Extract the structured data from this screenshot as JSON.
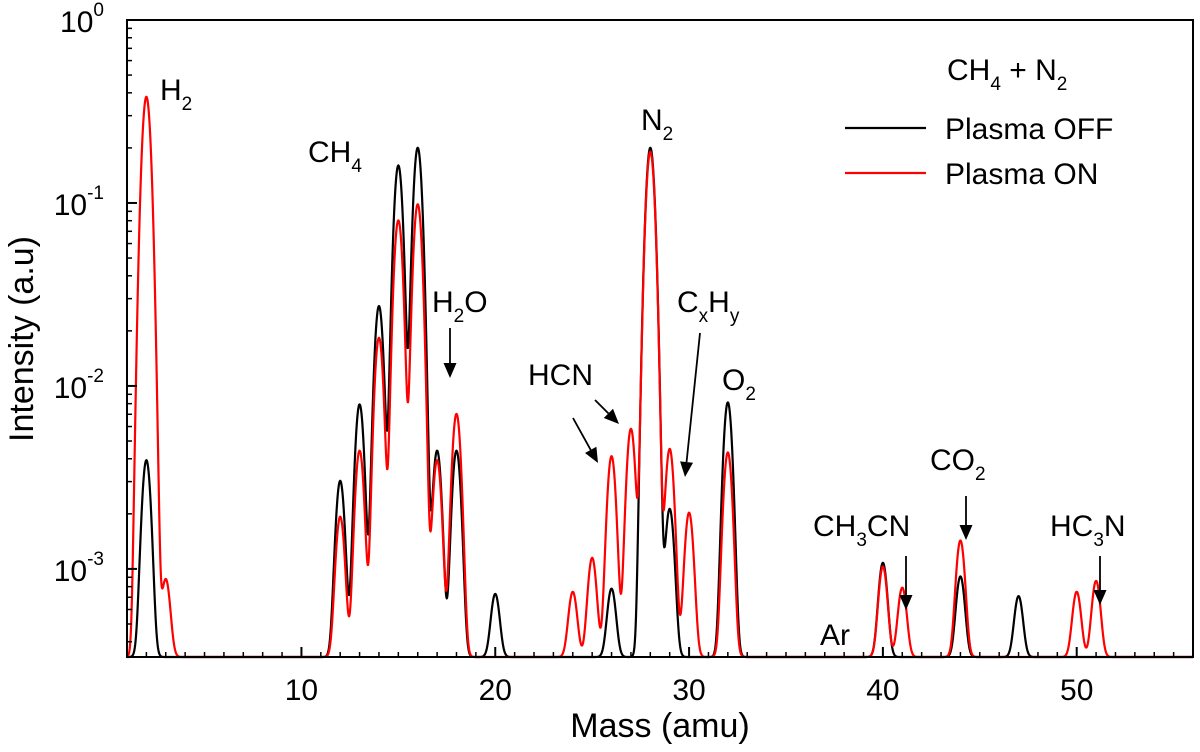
{
  "chart_data": {
    "type": "line",
    "xlabel": "Mass (amu)",
    "ylabel": "Intensity (a.u)",
    "xlim": [
      1,
      56
    ],
    "ylim": [
      0.00033,
      1
    ],
    "y_scale": "log",
    "grid": false,
    "x_ticks": [
      {
        "value": 10,
        "label": "10"
      },
      {
        "value": 20,
        "label": "20"
      },
      {
        "value": 30,
        "label": "30"
      },
      {
        "value": 40,
        "label": "40"
      },
      {
        "value": 50,
        "label": "50"
      }
    ],
    "y_ticks": [
      {
        "value": 1,
        "base": "10",
        "exp": "0"
      },
      {
        "value": 0.1,
        "base": "10",
        "exp": "-1"
      },
      {
        "value": 0.01,
        "base": "10",
        "exp": "-2"
      },
      {
        "value": 0.001,
        "base": "10",
        "exp": "-3"
      }
    ],
    "legend": {
      "title_parts": [
        "CH",
        "4",
        " + N",
        "2"
      ],
      "placement": "top-right"
    },
    "series": [
      {
        "name": "Plasma OFF",
        "color": "#000000",
        "peaks": [
          {
            "x": 2,
            "y": 0.0036
          },
          {
            "x": 12,
            "y": 0.0027
          },
          {
            "x": 13,
            "y": 0.0076
          },
          {
            "x": 14,
            "y": 0.027
          },
          {
            "x": 15,
            "y": 0.16
          },
          {
            "x": 16,
            "y": 0.2
          },
          {
            "x": 17,
            "y": 0.0041
          },
          {
            "x": 18,
            "y": 0.0041
          },
          {
            "x": 20,
            "y": 0.0004
          },
          {
            "x": 26,
            "y": 0.00045
          },
          {
            "x": 28,
            "y": 0.2
          },
          {
            "x": 29,
            "y": 0.0018
          },
          {
            "x": 32,
            "y": 0.0078
          },
          {
            "x": 40,
            "y": 0.00075
          },
          {
            "x": 44,
            "y": 0.00058
          },
          {
            "x": 47,
            "y": 0.00038
          }
        ]
      },
      {
        "name": "Plasma ON",
        "color": "#ff0000",
        "peaks": [
          {
            "x": 2,
            "y": 0.38
          },
          {
            "x": 3,
            "y": 0.00055
          },
          {
            "x": 12,
            "y": 0.0016
          },
          {
            "x": 13,
            "y": 0.0041
          },
          {
            "x": 14,
            "y": 0.018
          },
          {
            "x": 15,
            "y": 0.08
          },
          {
            "x": 16,
            "y": 0.098
          },
          {
            "x": 17,
            "y": 0.0036
          },
          {
            "x": 18,
            "y": 0.0067
          },
          {
            "x": 24,
            "y": 0.00042
          },
          {
            "x": 25,
            "y": 0.00082
          },
          {
            "x": 26,
            "y": 0.0038
          },
          {
            "x": 27,
            "y": 0.0055
          },
          {
            "x": 28,
            "y": 0.19
          },
          {
            "x": 29,
            "y": 0.0042
          },
          {
            "x": 30,
            "y": 0.0017
          },
          {
            "x": 32,
            "y": 0.004
          },
          {
            "x": 40,
            "y": 0.0007
          },
          {
            "x": 41,
            "y": 0.00046
          },
          {
            "x": 44,
            "y": 0.0011
          },
          {
            "x": 50,
            "y": 0.00042
          },
          {
            "x": 51,
            "y": 0.00053
          }
        ]
      }
    ],
    "annotations": [
      {
        "id": "h2",
        "parts": [
          "H",
          "2"
        ]
      },
      {
        "id": "ch4",
        "parts": [
          "CH",
          "4"
        ]
      },
      {
        "id": "h2o",
        "parts": [
          "H",
          "2",
          "O"
        ]
      },
      {
        "id": "hcn",
        "parts": [
          "HCN"
        ]
      },
      {
        "id": "n2",
        "parts": [
          "N",
          "2"
        ]
      },
      {
        "id": "cxhy",
        "parts": [
          "C",
          "x",
          "H",
          "y"
        ]
      },
      {
        "id": "o2",
        "parts": [
          "O",
          "2"
        ]
      },
      {
        "id": "ch3cn",
        "parts": [
          "CH",
          "3",
          "CN"
        ]
      },
      {
        "id": "co2",
        "parts": [
          "CO",
          "2"
        ]
      },
      {
        "id": "ar",
        "parts": [
          "Ar"
        ]
      },
      {
        "id": "hc3n",
        "parts": [
          "HC",
          "3",
          "N"
        ]
      }
    ]
  }
}
